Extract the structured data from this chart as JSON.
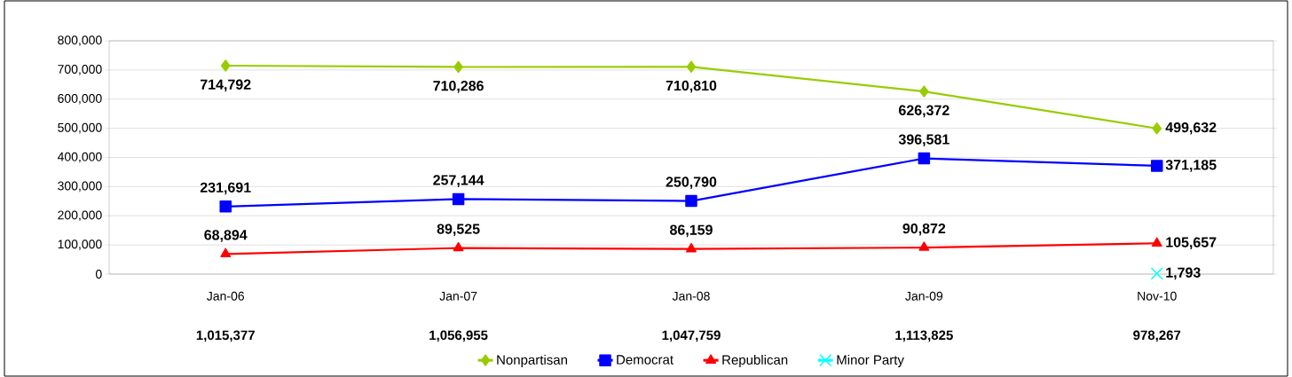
{
  "chart_data": {
    "type": "line",
    "categories": [
      "Jan-06",
      "Jan-07",
      "Jan-08",
      "Jan-09",
      "Nov-10"
    ],
    "series": [
      {
        "name": "Nonpartisan",
        "color": "#99cc00",
        "marker": "diamond",
        "values": [
          714792,
          710286,
          710810,
          626372,
          499632
        ],
        "value_labels": [
          "714,792",
          "710,286",
          "710,810",
          "626,372",
          "499,632"
        ]
      },
      {
        "name": "Democrat",
        "color": "#0000ff",
        "marker": "square",
        "values": [
          231691,
          257144,
          250790,
          396581,
          371185
        ],
        "value_labels": [
          "231,691",
          "257,144",
          "250,790",
          "396,581",
          "371,185"
        ]
      },
      {
        "name": "Republican",
        "color": "#ff0000",
        "marker": "triangle",
        "values": [
          68894,
          89525,
          86159,
          90872,
          105657
        ],
        "value_labels": [
          "68,894",
          "89,525",
          "86,159",
          "90,872",
          "105,657"
        ]
      },
      {
        "name": "Minor Party",
        "color": "#00ffff",
        "marker": "cross",
        "values": [
          null,
          null,
          null,
          null,
          1793
        ],
        "value_labels": [
          null,
          null,
          null,
          null,
          "1,793"
        ]
      }
    ],
    "ylim": [
      0,
      800000
    ],
    "yticks": [
      0,
      {
        "value": 100000,
        "label": "100,000"
      },
      {
        "value": 200000,
        "label": "200,000"
      },
      {
        "value": 300000,
        "label": "300,000"
      },
      {
        "value": 400000,
        "label": "400,000"
      },
      {
        "value": 500000,
        "label": "500,000"
      },
      {
        "value": 600000,
        "label": "600,000"
      },
      {
        "value": 700000,
        "label": "700,000"
      },
      {
        "value": 800000,
        "label": "800,000"
      }
    ],
    "grid": "y",
    "legend": "bottom",
    "annotations": [
      "1,015,377",
      "1,056,955",
      "1,047,759",
      "1,113,825",
      "978,267"
    ]
  }
}
